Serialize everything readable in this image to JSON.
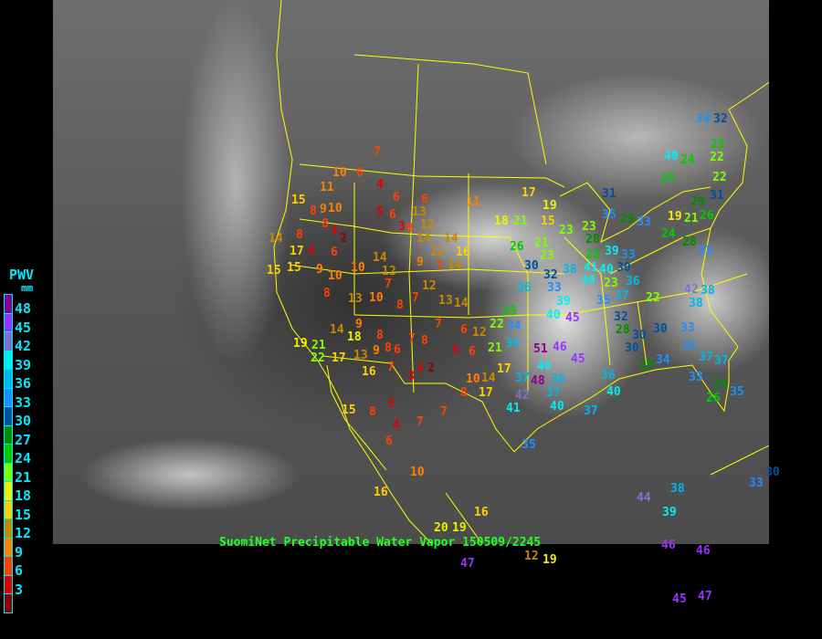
{
  "caption": "SuomiNet Precipitable Water Vapor 150509/2245",
  "legend": {
    "title": "PWV",
    "unit": "mm",
    "labels": [
      "48",
      "45",
      "42",
      "39",
      "36",
      "33",
      "30",
      "27",
      "24",
      "21",
      "18",
      "15",
      "12",
      "9",
      "6",
      "3"
    ],
    "colors": [
      "#8b0090",
      "#9933ff",
      "#8070d0",
      "#00f0f0",
      "#00b8e8",
      "#1e90ff",
      "#0050a0",
      "#008c00",
      "#00cc00",
      "#80ff00",
      "#f0f000",
      "#ffd000",
      "#c88800",
      "#ff8000",
      "#ff4000",
      "#e00000",
      "#900000"
    ]
  },
  "colors": {
    "borders": "#ffff00",
    "legend_text": "#00e8ff",
    "caption": "#22ff22"
  },
  "stations": [
    7,
    10,
    6,
    11,
    4,
    6,
    6,
    11,
    15,
    8,
    9,
    10,
    8,
    4,
    2,
    8,
    17,
    14,
    15,
    15,
    4,
    9,
    6,
    10,
    8,
    13,
    10,
    10,
    12,
    14,
    7,
    8,
    7,
    12,
    14,
    12,
    14,
    16,
    9,
    7,
    14,
    13,
    14,
    5,
    6,
    3,
    8,
    12,
    13,
    9,
    8,
    9,
    8,
    6,
    7,
    8,
    7,
    4,
    3,
    2,
    6,
    5,
    6,
    12,
    10,
    8,
    17,
    14,
    17,
    13,
    16,
    7,
    14,
    18,
    17,
    19,
    21,
    22,
    15,
    8,
    3,
    4,
    6,
    10,
    7,
    7,
    16,
    16,
    20,
    19,
    47,
    12,
    19,
    17,
    19,
    18,
    21,
    15,
    23,
    23,
    21,
    23,
    26,
    30,
    32,
    36,
    33,
    38,
    40,
    39,
    40,
    45,
    46,
    40,
    38,
    37,
    37,
    42,
    37,
    40,
    35,
    41,
    22,
    21,
    34,
    36,
    25,
    48,
    51,
    45,
    31,
    35,
    29,
    33,
    28,
    25,
    39,
    41,
    33,
    40,
    30,
    37,
    36,
    23,
    35,
    22,
    32,
    28,
    30,
    30,
    30,
    33,
    35,
    37,
    38,
    38,
    42,
    19,
    21,
    24,
    28,
    33,
    29,
    26,
    31,
    25,
    40,
    24,
    22,
    22,
    25,
    34,
    32,
    33,
    26,
    29,
    35,
    37,
    34,
    29,
    36,
    40,
    33,
    38,
    39,
    44,
    46,
    46,
    45,
    47,
    30
  ]
}
